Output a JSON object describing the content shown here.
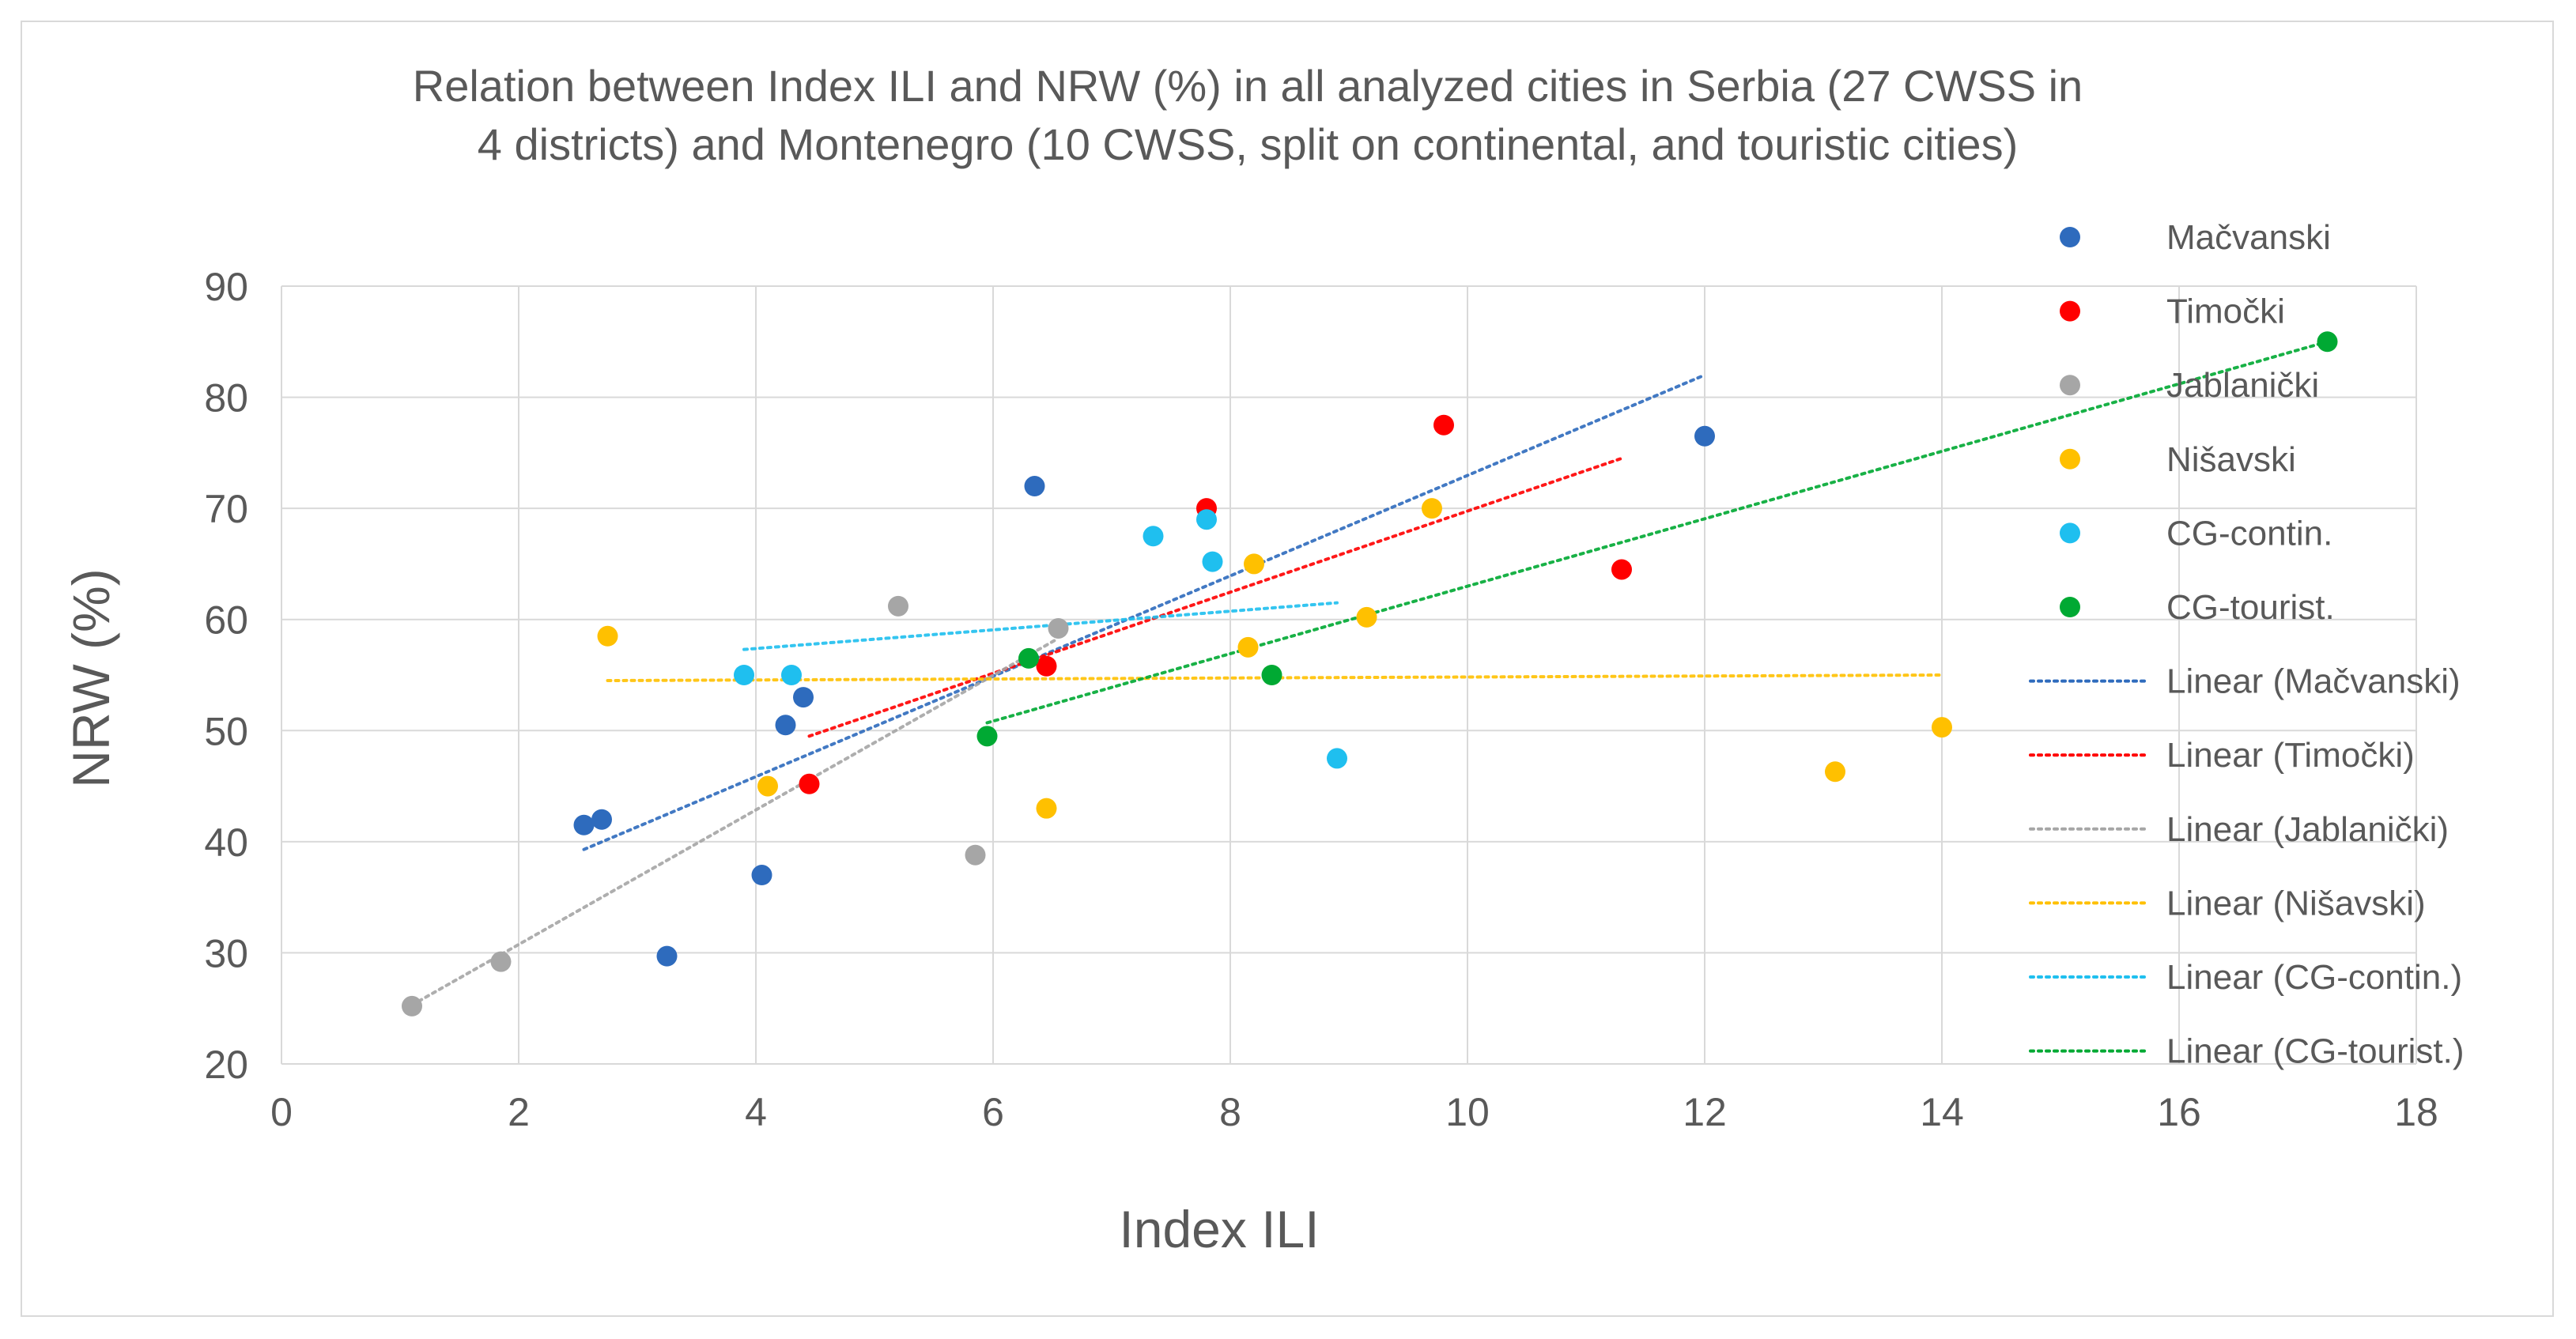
{
  "chart_data": {
    "type": "scatter",
    "title": "Relation between Index ILI and NRW (%) in all analyzed cities in Serbia (27 CWSS in 4 districts) and Montenegro (10 CWSS, split on continental, and touristic cities)",
    "title_lines": [
      "Relation between Index ILI and NRW (%) in all analyzed cities in Serbia (27 CWSS in",
      "4 districts) and Montenegro (10 CWSS, split on continental, and touristic cities)"
    ],
    "xlabel": "Index ILI",
    "ylabel": "NRW (%)",
    "xlim": [
      0,
      18
    ],
    "ylim": [
      20,
      90
    ],
    "xticks": [
      0,
      2,
      4,
      6,
      8,
      10,
      12,
      14,
      16,
      18
    ],
    "yticks": [
      20,
      30,
      40,
      50,
      60,
      70,
      80,
      90
    ],
    "grid": true,
    "legend_position": "right",
    "series": [
      {
        "name": "Mačvanski",
        "color": "#2e6bbd",
        "points": [
          [
            2.55,
            41.5
          ],
          [
            2.7,
            42
          ],
          [
            3.25,
            29.7
          ],
          [
            4.05,
            37
          ],
          [
            4.25,
            50.5
          ],
          [
            4.4,
            53
          ],
          [
            6.35,
            72
          ],
          [
            12,
            76.5
          ]
        ],
        "trend_name": "Linear (Mačvanski)",
        "trend": [
          [
            2.55,
            39.3
          ],
          [
            12,
            82
          ]
        ]
      },
      {
        "name": "Timočki",
        "color": "#ff0000",
        "points": [
          [
            4.45,
            45.2
          ],
          [
            6.45,
            55.8
          ],
          [
            7.8,
            70
          ],
          [
            9.8,
            77.5
          ],
          [
            11.3,
            64.5
          ]
        ],
        "trend_name": "Linear (Timočki)",
        "trend": [
          [
            4.45,
            49.5
          ],
          [
            11.3,
            74.5
          ]
        ]
      },
      {
        "name": "Jablanički",
        "color": "#a6a6a6",
        "points": [
          [
            1.1,
            25.2
          ],
          [
            1.85,
            29.2
          ],
          [
            5.2,
            61.2
          ],
          [
            5.85,
            38.8
          ],
          [
            6.55,
            59.2
          ]
        ],
        "trend_name": "Linear (Jablanički)",
        "trend": [
          [
            1.1,
            25.3
          ],
          [
            6.55,
            58.3
          ]
        ]
      },
      {
        "name": "Nišavski",
        "color": "#ffc000",
        "points": [
          [
            2.75,
            58.5
          ],
          [
            4.1,
            45
          ],
          [
            6.45,
            43
          ],
          [
            8.15,
            57.5
          ],
          [
            8.2,
            65
          ],
          [
            9.15,
            60.2
          ],
          [
            9.7,
            70
          ],
          [
            13.1,
            46.3
          ],
          [
            14,
            50.3
          ]
        ],
        "trend_name": "Linear (Nišavski)",
        "trend": [
          [
            2.75,
            54.5
          ],
          [
            14,
            55
          ]
        ]
      },
      {
        "name": "CG-contin.",
        "color": "#1fbfef",
        "points": [
          [
            3.9,
            55
          ],
          [
            4.3,
            55
          ],
          [
            7.35,
            67.5
          ],
          [
            7.8,
            69
          ],
          [
            7.85,
            65.2
          ],
          [
            8.9,
            47.5
          ]
        ],
        "trend_name": "Linear (CG-contin.)",
        "trend": [
          [
            3.9,
            57.3
          ],
          [
            8.9,
            61.5
          ]
        ]
      },
      {
        "name": "CG-tourist.",
        "color": "#00a933",
        "points": [
          [
            5.95,
            49.5
          ],
          [
            6.3,
            56.5
          ],
          [
            8.35,
            55
          ],
          [
            17.25,
            85
          ]
        ],
        "trend_name": "Linear (CG-tourist.)",
        "trend": [
          [
            5.95,
            50.7
          ],
          [
            17.25,
            85
          ]
        ]
      }
    ]
  }
}
